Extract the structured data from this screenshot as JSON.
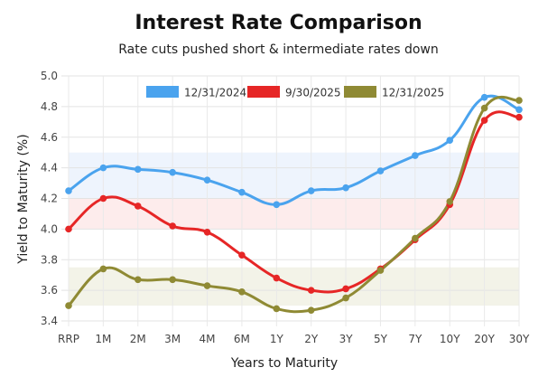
{
  "chart_data": {
    "type": "line",
    "title": "Interest Rate Comparison",
    "subtitle": "Rate cuts pushed short & intermediate rates down",
    "xlabel": "Years to Maturity",
    "ylabel": "Yield to Maturity (%)",
    "categories": [
      "RRP",
      "1M",
      "2M",
      "3M",
      "4M",
      "6M",
      "1Y",
      "2Y",
      "3Y",
      "5Y",
      "7Y",
      "10Y",
      "20Y",
      "30Y"
    ],
    "ylim": [
      3.4,
      5.0
    ],
    "yticks": [
      "3.4",
      "3.6",
      "3.8",
      "4.0",
      "4.2",
      "4.4",
      "4.6",
      "4.8",
      "5.0"
    ],
    "grid": true,
    "legend_position": "top",
    "bands": [
      {
        "from": 4.2,
        "to": 4.5,
        "color": "#eef4fd"
      },
      {
        "from": 4.0,
        "to": 4.2,
        "color": "#fdecec"
      },
      {
        "from": 3.5,
        "to": 3.75,
        "color": "#f3f3e8"
      }
    ],
    "series": [
      {
        "name": "12/31/2024",
        "color": "#4aa3ee",
        "values": [
          4.25,
          4.4,
          4.39,
          4.37,
          4.32,
          4.24,
          4.16,
          4.25,
          4.27,
          4.38,
          4.48,
          4.58,
          4.86,
          4.78
        ]
      },
      {
        "name": "9/30/2025",
        "color": "#e62626",
        "values": [
          4.0,
          4.2,
          4.15,
          4.02,
          3.98,
          3.83,
          3.68,
          3.6,
          3.61,
          3.74,
          3.93,
          4.16,
          4.71,
          4.73
        ]
      },
      {
        "name": "12/31/2025",
        "color": "#8f8a34",
        "values": [
          3.5,
          3.74,
          3.67,
          3.67,
          3.63,
          3.59,
          3.48,
          3.47,
          3.55,
          3.73,
          3.94,
          4.18,
          4.79,
          4.84
        ]
      }
    ]
  }
}
